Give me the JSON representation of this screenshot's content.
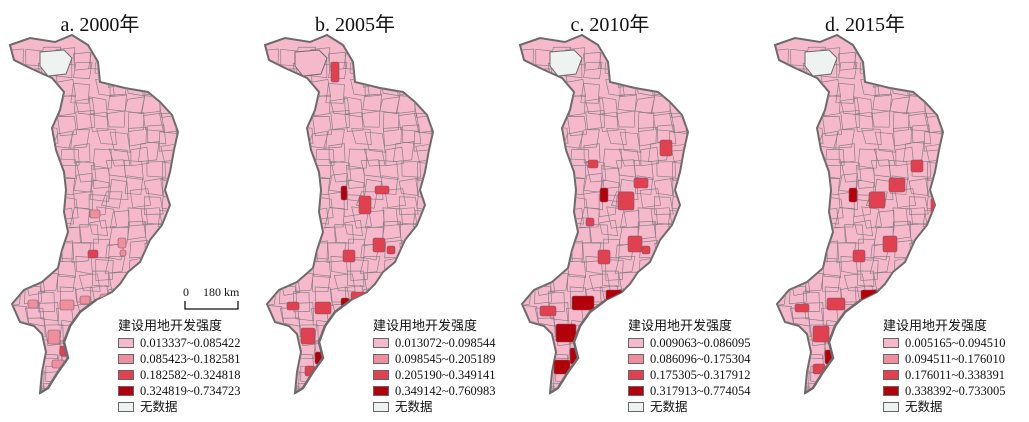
{
  "legend_title": "建设用地开发强度",
  "no_data_label": "无数据",
  "scale": {
    "zero": "0",
    "distance": "180 km"
  },
  "colors": {
    "c1": "#f6b9cc",
    "c2": "#ef8f9d",
    "c3": "#e0404f",
    "c4": "#b3000a",
    "nodata": "#eef2f0",
    "border": "#6b6b6b"
  },
  "panels": [
    {
      "title": "a. 2000年",
      "classes": [
        "0.013337~0.085422",
        "0.085423~0.182581",
        "0.182582~0.324818",
        "0.324819~0.734723"
      ]
    },
    {
      "title": "b. 2005年",
      "classes": [
        "0.013072~0.098544",
        "0.098545~0.205189",
        "0.205190~0.349141",
        "0.349142~0.760983"
      ]
    },
    {
      "title": "c. 2010年",
      "classes": [
        "0.009063~0.086095",
        "0.086096~0.175304",
        "0.175305~0.317912",
        "0.317913~0.774054"
      ]
    },
    {
      "title": "d. 2015年",
      "classes": [
        "0.005165~0.094510",
        "0.094511~0.176010",
        "0.176011~0.338391",
        "0.338392~0.733005"
      ]
    }
  ]
}
